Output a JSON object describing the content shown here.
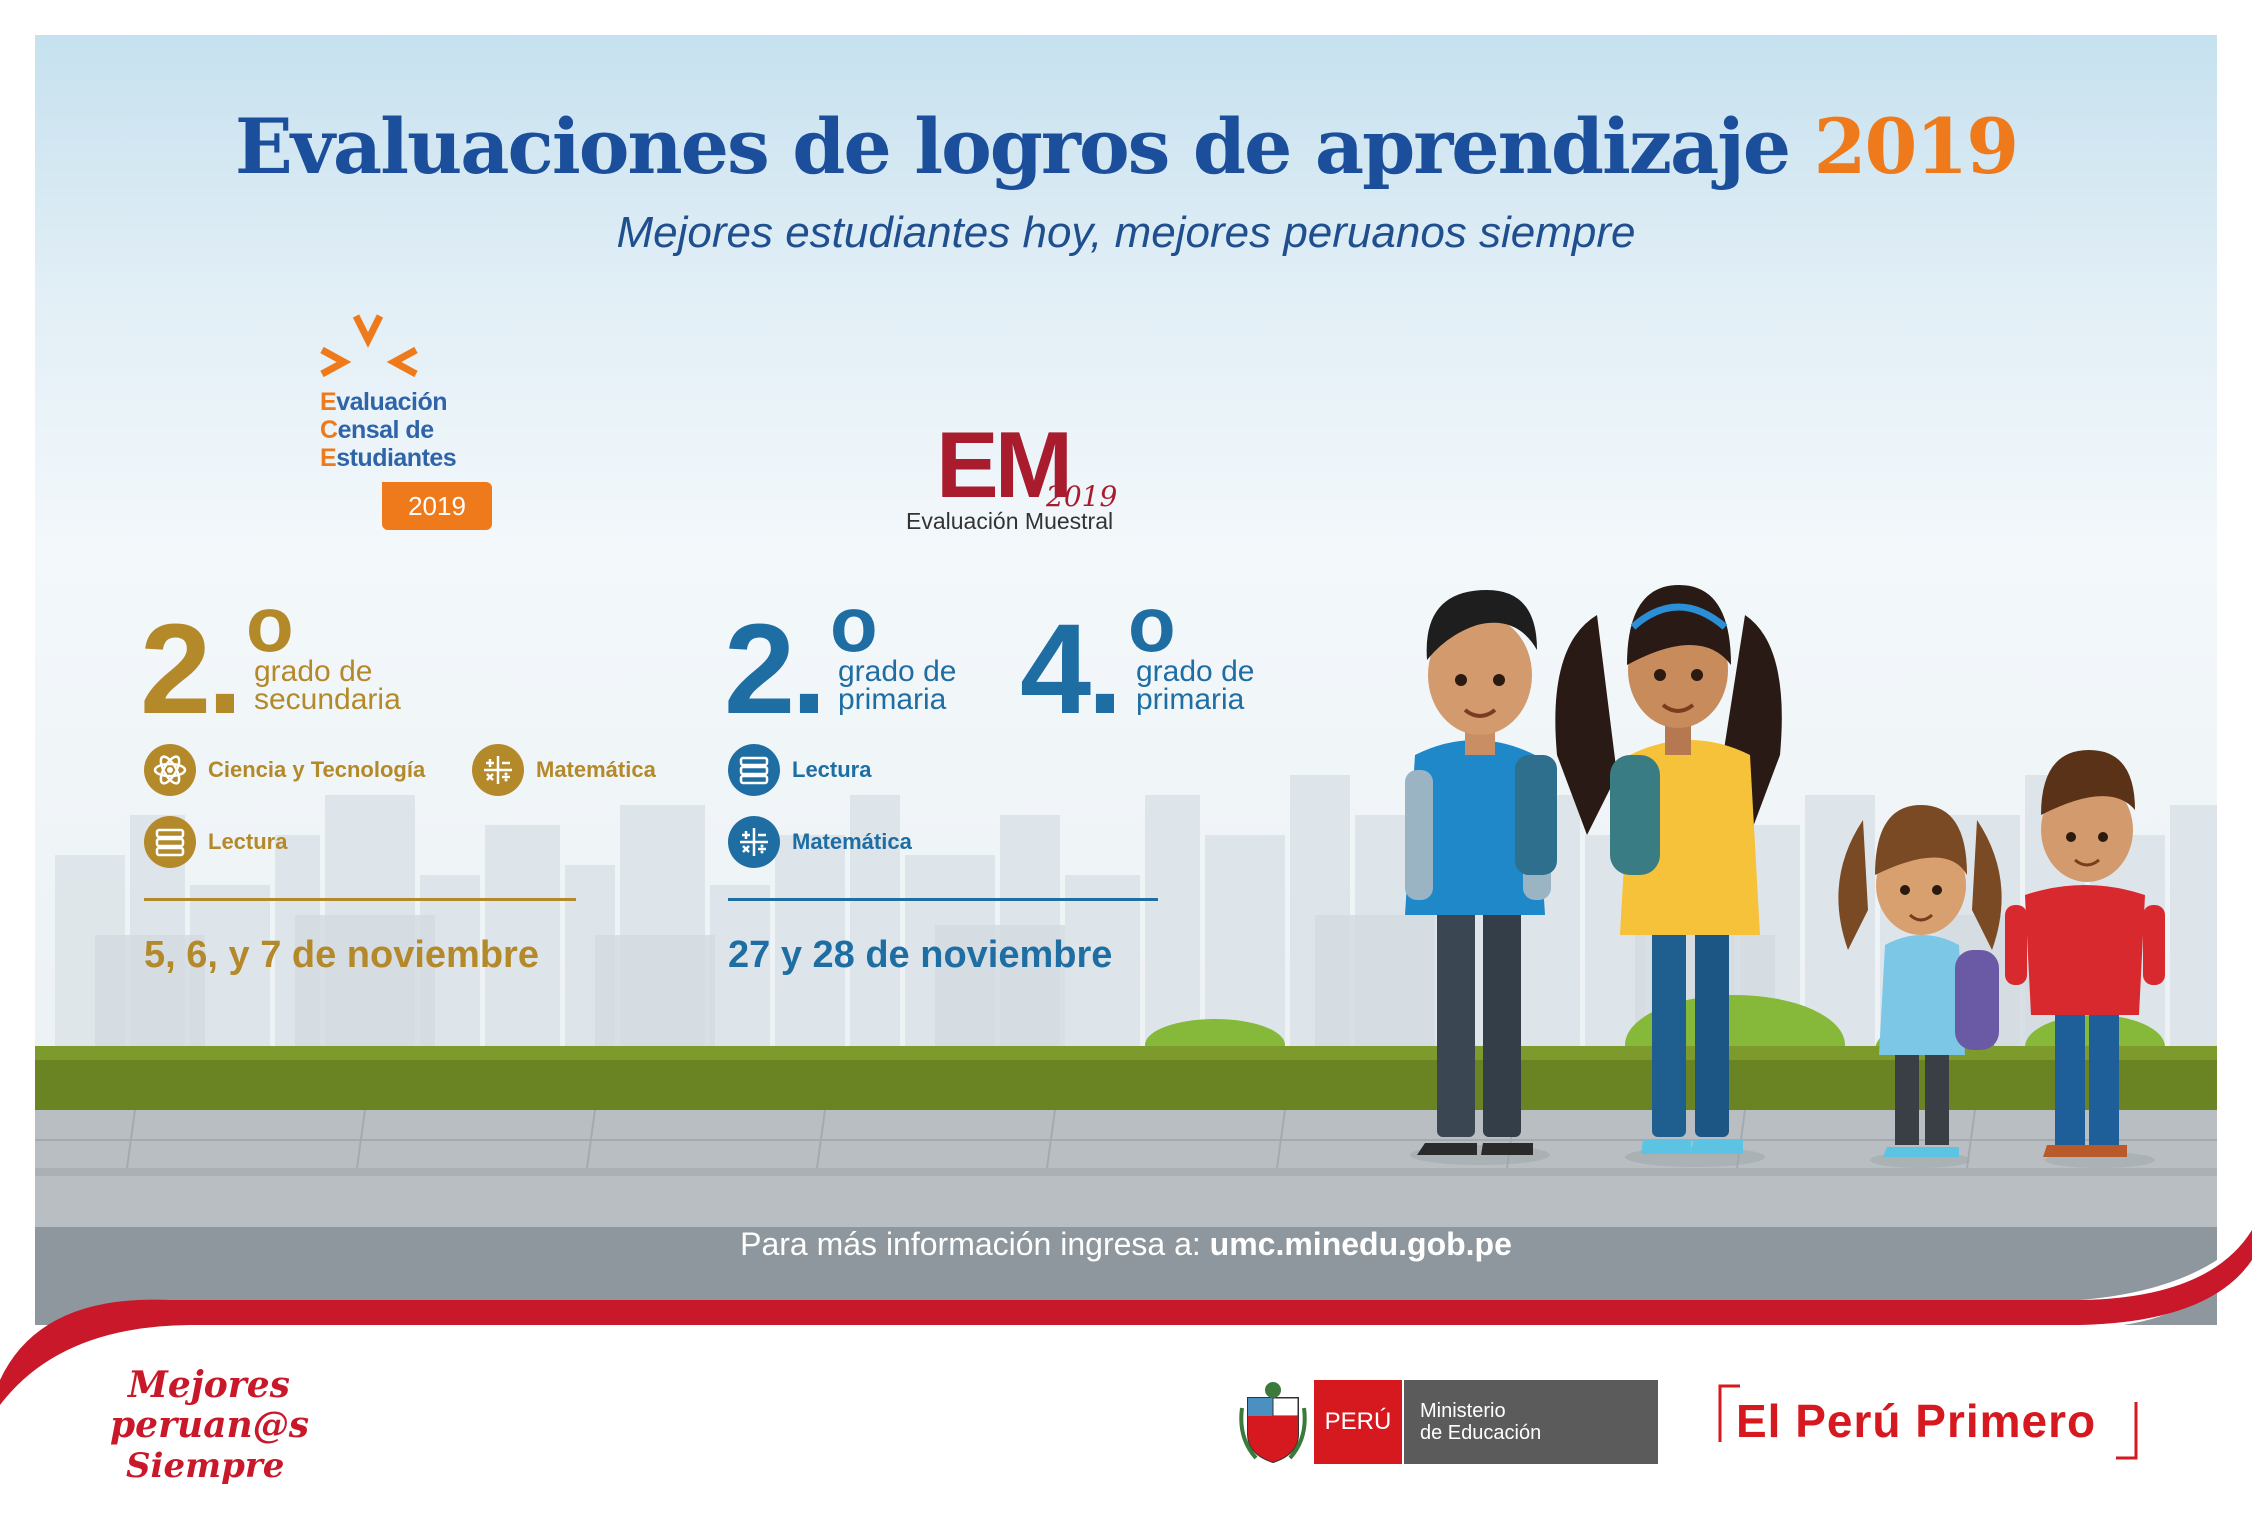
{
  "header": {
    "title": "Evaluaciones de logros de aprendizaje",
    "title_year": "2019",
    "subtitle": "Mejores estudiantes hoy, mejores peruanos siempre"
  },
  "ece_logo": {
    "line1_initial": "E",
    "line1_rest": "valuación",
    "line2_initial": "C",
    "line2_rest": "ensal de",
    "line3_initial": "E",
    "line3_rest": "studiantes",
    "year": "2019"
  },
  "em_logo": {
    "letters": "EM",
    "year": "2019",
    "subtitle": "Evaluación Muestral"
  },
  "ece_block": {
    "number": "2.",
    "degree": "o",
    "grade_line1": "grado de",
    "grade_line2": "secundaria",
    "subjects": [
      {
        "label": "Ciencia y Tecnología",
        "icon": "atom-icon"
      },
      {
        "label": "Matemática",
        "icon": "math-operators-icon"
      },
      {
        "label": "Lectura",
        "icon": "books-icon"
      }
    ],
    "dates": "5, 6, y 7 de noviembre",
    "color": "#b4892a"
  },
  "em_block": {
    "grades": [
      {
        "number": "2.",
        "degree": "o",
        "line1": "grado de",
        "line2": "primaria"
      },
      {
        "number": "4.",
        "degree": "o",
        "line1": "grado de",
        "line2": "primaria"
      }
    ],
    "subjects": [
      {
        "label": "Lectura",
        "icon": "books-icon"
      },
      {
        "label": "Matemática",
        "icon": "math-operators-icon"
      }
    ],
    "dates": "27 y 28 de noviembre",
    "color": "#1e6ea4"
  },
  "info": {
    "prefix": "Para más información ingresa a:",
    "url": "umc.minedu.gob.pe"
  },
  "footer": {
    "mejores_line1": "Mejores",
    "mejores_line2": "peruan@s",
    "mejores_line3": "Siempre",
    "peru_label": "PERÚ",
    "ministerio_line1": "Ministerio",
    "ministerio_line2": "de Educación",
    "el_peru_primero": "El Perú Primero"
  },
  "colors": {
    "title_blue": "#1b4f9c",
    "orange": "#ee7a1b",
    "gold": "#b4892a",
    "blue": "#1e6ea4",
    "red": "#d6191f"
  }
}
